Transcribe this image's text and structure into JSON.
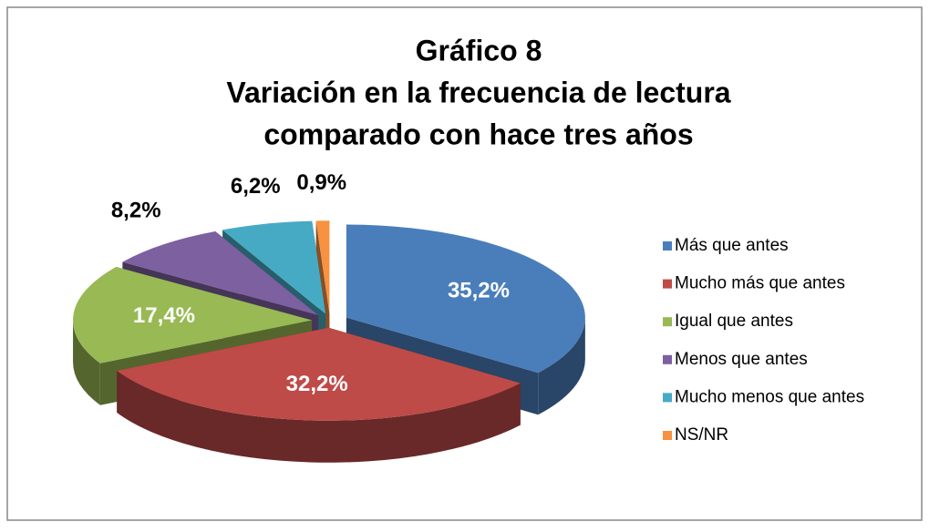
{
  "chart_data": {
    "type": "pie",
    "title": [
      "Gráfico 8",
      "Variación en la frecuencia de lectura",
      "comparado con hace tres años"
    ],
    "categories": [
      "Más que antes",
      "Mucho más que antes",
      "Igual que antes",
      "Menos que antes",
      "Mucho menos que antes",
      "NS/NR"
    ],
    "values": [
      35.2,
      32.2,
      17.4,
      8.2,
      6.2,
      0.9
    ],
    "value_labels": [
      "35,2%",
      "32,2%",
      "17,4%",
      "8,2%",
      "6,2%",
      "0,9%"
    ],
    "colors": [
      "#4a7ebb",
      "#be4b48",
      "#98b954",
      "#7d60a0",
      "#46aac5",
      "#f69240"
    ],
    "legend": "right"
  }
}
